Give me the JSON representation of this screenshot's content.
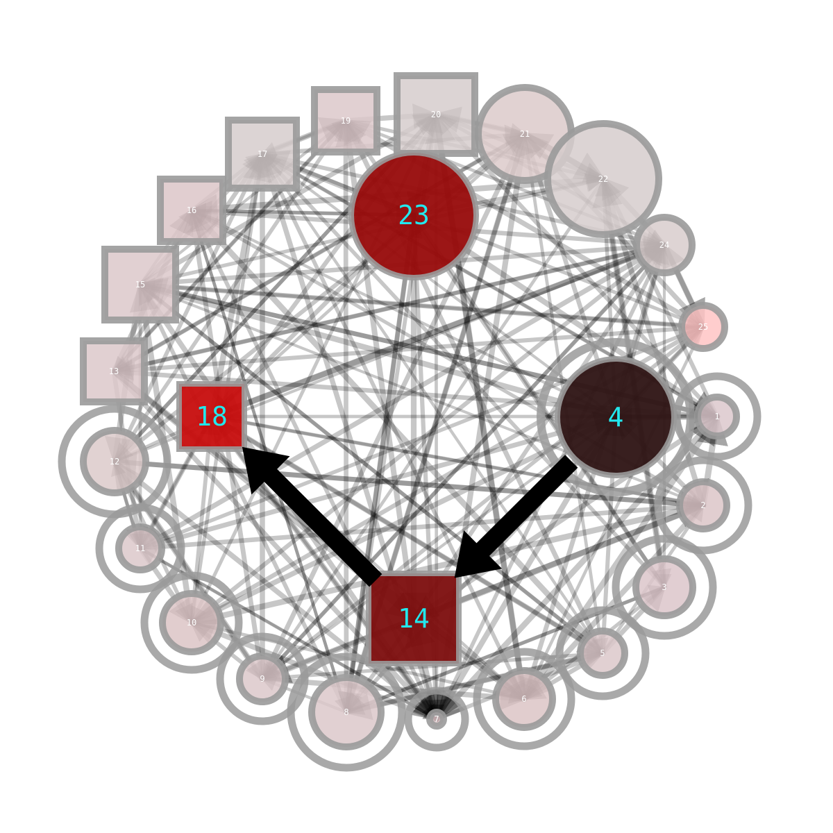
{
  "graph": {
    "title": "",
    "nodes": [
      {
        "id": "1",
        "label": "1",
        "shape": "circle",
        "fill": "#dcc8cc",
        "emphasis": "minor",
        "self_loop": true
      },
      {
        "id": "2",
        "label": "2",
        "shape": "circle",
        "fill": "#dcc6c8",
        "emphasis": "minor",
        "self_loop": true
      },
      {
        "id": "3",
        "label": "3",
        "shape": "circle",
        "fill": "#dcc6ca",
        "emphasis": "minor",
        "self_loop": true
      },
      {
        "id": "4",
        "label": "4",
        "shape": "circle",
        "fill": "#301616",
        "emphasis": "major",
        "self_loop": true
      },
      {
        "id": "5",
        "label": "5",
        "shape": "circle",
        "fill": "#dcc8ca",
        "emphasis": "minor",
        "self_loop": true
      },
      {
        "id": "6",
        "label": "6",
        "shape": "circle",
        "fill": "#dcc4c6",
        "emphasis": "minor",
        "self_loop": true
      },
      {
        "id": "7",
        "label": "7",
        "shape": "circle",
        "fill": "#dcc2c6",
        "emphasis": "minor",
        "self_loop": true
      },
      {
        "id": "8",
        "label": "8",
        "shape": "circle",
        "fill": "#dcc8ca",
        "emphasis": "minor",
        "self_loop": true
      },
      {
        "id": "9",
        "label": "9",
        "shape": "circle",
        "fill": "#dcc8ca",
        "emphasis": "minor",
        "self_loop": true
      },
      {
        "id": "10",
        "label": "10",
        "shape": "circle",
        "fill": "#dcc4c6",
        "emphasis": "minor",
        "self_loop": true
      },
      {
        "id": "11",
        "label": "11",
        "shape": "circle",
        "fill": "#dcc8ca",
        "emphasis": "minor",
        "self_loop": true
      },
      {
        "id": "12",
        "label": "12",
        "shape": "circle",
        "fill": "#dccaca",
        "emphasis": "minor",
        "self_loop": true
      },
      {
        "id": "13",
        "label": "13",
        "shape": "square",
        "fill": "#dcc8ca",
        "emphasis": "minor",
        "self_loop": false
      },
      {
        "id": "14",
        "label": "14",
        "shape": "square",
        "fill": "#7e1010",
        "emphasis": "major",
        "self_loop": false
      },
      {
        "id": "15",
        "label": "15",
        "shape": "square",
        "fill": "#dcc8ca",
        "emphasis": "minor",
        "self_loop": false
      },
      {
        "id": "16",
        "label": "16",
        "shape": "square",
        "fill": "#dcc6c8",
        "emphasis": "minor",
        "self_loop": false
      },
      {
        "id": "17",
        "label": "17",
        "shape": "square",
        "fill": "#d6cccc",
        "emphasis": "minor",
        "self_loop": false
      },
      {
        "id": "18",
        "label": "18",
        "shape": "square",
        "fill": "#c81010",
        "emphasis": "major",
        "self_loop": false
      },
      {
        "id": "19",
        "label": "19",
        "shape": "square",
        "fill": "#dcc8ca",
        "emphasis": "minor",
        "self_loop": false
      },
      {
        "id": "20",
        "label": "20",
        "shape": "square",
        "fill": "#d6cccc",
        "emphasis": "minor",
        "self_loop": false
      },
      {
        "id": "21",
        "label": "21",
        "shape": "circle",
        "fill": "#dccaca",
        "emphasis": "minor",
        "self_loop": false
      },
      {
        "id": "22",
        "label": "22",
        "shape": "circle",
        "fill": "#d6cccc",
        "emphasis": "minor",
        "self_loop": false
      },
      {
        "id": "23",
        "label": "23",
        "shape": "circle",
        "fill": "#980c0c",
        "emphasis": "major",
        "self_loop": false
      },
      {
        "id": "24",
        "label": "24",
        "shape": "circle",
        "fill": "#d8cccc",
        "emphasis": "minor",
        "self_loop": false
      },
      {
        "id": "25",
        "label": "25",
        "shape": "circle",
        "fill": "#ffc4c4",
        "emphasis": "minor",
        "self_loop": false
      }
    ],
    "highlighted_edges": [
      {
        "from": "4",
        "to": "14"
      },
      {
        "from": "14",
        "to": "18"
      }
    ],
    "colors": {
      "background": "#ffffff",
      "major_label": "#22e8ee",
      "minor_label": "#ffffff",
      "node_border": "#9a9a9a",
      "edge": "#000000"
    }
  }
}
